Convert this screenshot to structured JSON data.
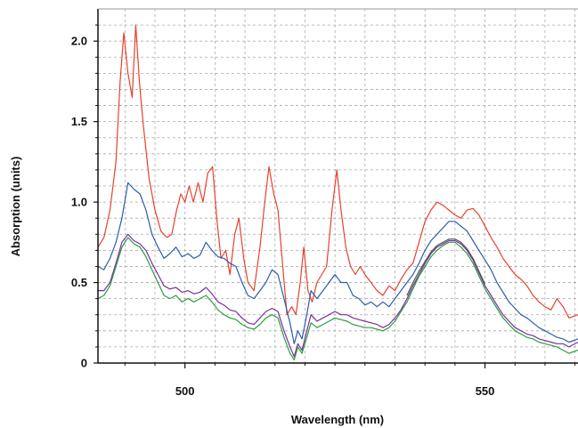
{
  "chart_data": {
    "type": "line",
    "title": "",
    "xlabel": "Wavelength (nm)",
    "ylabel": "Absorption (units)",
    "xlim": [
      485.5,
      565.5
    ],
    "ylim": [
      0,
      2.2
    ],
    "xticks": [
      500,
      550
    ],
    "xtick_labels": [
      "500",
      "550"
    ],
    "yticks": [
      0,
      0.5,
      1.0,
      1.5,
      2.0
    ],
    "ytick_labels": [
      "0",
      "0.5",
      "1.0",
      "1.5",
      "2.0"
    ],
    "grid": true,
    "legend": "none",
    "series": [
      {
        "color": "#e8412c",
        "x": [
          485.5,
          486.5,
          487.5,
          488.5,
          489.2,
          489.8,
          490.5,
          491.2,
          491.8,
          492.4,
          493.0,
          494.0,
          495.0,
          496.0,
          497.0,
          497.8,
          498.6,
          499.3,
          500.0,
          500.7,
          501.4,
          502.2,
          503.0,
          503.8,
          504.6,
          505.3,
          506.0,
          506.8,
          507.5,
          508.3,
          509.0,
          509.8,
          510.5,
          511.5,
          512.5,
          513.3,
          514.0,
          514.8,
          515.5,
          516.3,
          517.0,
          517.8,
          518.5,
          519.2,
          519.8,
          520.5,
          521.2,
          522.0,
          522.8,
          523.6,
          524.5,
          525.3,
          526.0,
          526.8,
          527.6,
          528.4,
          529.2,
          530.0,
          531.0,
          532.0,
          533.0,
          534.0,
          535.0,
          536.0,
          537.0,
          538.0,
          539.0,
          540.0,
          541.0,
          542.0,
          543.0,
          544.0,
          545.0,
          546.0,
          547.0,
          548.0,
          549.0,
          550.0,
          551.0,
          552.0,
          553.0,
          554.0,
          555.0,
          556.0,
          557.0,
          558.0,
          559.0,
          560.0,
          561.0,
          562.0,
          563.0,
          564.0,
          565.5
        ],
        "y": [
          0.72,
          0.78,
          0.95,
          1.25,
          1.75,
          2.05,
          1.8,
          1.65,
          2.1,
          1.75,
          1.5,
          1.15,
          0.95,
          0.82,
          0.78,
          0.8,
          0.95,
          1.05,
          1.0,
          1.1,
          1.0,
          1.12,
          1.0,
          1.18,
          1.22,
          0.9,
          0.65,
          0.7,
          0.55,
          0.8,
          0.9,
          0.65,
          0.5,
          0.45,
          0.72,
          1.0,
          1.22,
          1.05,
          0.95,
          0.6,
          0.3,
          0.35,
          0.3,
          0.5,
          0.72,
          0.45,
          0.38,
          0.5,
          0.55,
          0.6,
          0.95,
          1.2,
          0.95,
          0.72,
          0.6,
          0.55,
          0.6,
          0.55,
          0.5,
          0.45,
          0.42,
          0.48,
          0.45,
          0.52,
          0.58,
          0.62,
          0.75,
          0.88,
          0.95,
          1.0,
          0.98,
          0.95,
          0.92,
          0.9,
          0.95,
          0.96,
          0.92,
          0.85,
          0.78,
          0.72,
          0.65,
          0.6,
          0.55,
          0.52,
          0.48,
          0.42,
          0.38,
          0.35,
          0.33,
          0.4,
          0.35,
          0.28,
          0.3
        ]
      },
      {
        "color": "#2b5dab",
        "x": [
          485.5,
          486.5,
          487.5,
          488.5,
          489.5,
          490.5,
          491.5,
          492.5,
          493.5,
          494.5,
          495.5,
          496.5,
          497.5,
          498.5,
          499.5,
          500.5,
          501.5,
          502.5,
          503.5,
          504.5,
          505.5,
          506.5,
          507.5,
          508.5,
          509.5,
          510.5,
          511.5,
          512.5,
          513.5,
          514.5,
          515.5,
          516.5,
          517.5,
          518.2,
          518.8,
          519.5,
          520.3,
          521.0,
          522.0,
          523.0,
          524.0,
          525.0,
          526.0,
          527.0,
          528.0,
          529.0,
          530.0,
          531.0,
          532.0,
          533.0,
          534.0,
          535.0,
          536.0,
          537.0,
          538.0,
          539.0,
          540.0,
          541.0,
          542.0,
          543.0,
          544.0,
          545.0,
          546.0,
          547.0,
          548.0,
          549.0,
          550.0,
          551.0,
          552.0,
          553.0,
          554.0,
          555.0,
          556.0,
          557.0,
          558.0,
          559.0,
          560.0,
          561.0,
          562.0,
          563.0,
          564.0,
          565.5
        ],
        "y": [
          0.6,
          0.58,
          0.65,
          0.75,
          0.9,
          1.12,
          1.08,
          1.05,
          0.95,
          0.8,
          0.72,
          0.65,
          0.68,
          0.72,
          0.66,
          0.68,
          0.65,
          0.67,
          0.75,
          0.7,
          0.66,
          0.65,
          0.62,
          0.6,
          0.5,
          0.42,
          0.4,
          0.45,
          0.5,
          0.58,
          0.55,
          0.4,
          0.25,
          0.12,
          0.2,
          0.15,
          0.3,
          0.45,
          0.4,
          0.45,
          0.5,
          0.55,
          0.5,
          0.5,
          0.42,
          0.4,
          0.36,
          0.38,
          0.35,
          0.38,
          0.35,
          0.4,
          0.45,
          0.5,
          0.55,
          0.62,
          0.7,
          0.76,
          0.8,
          0.84,
          0.88,
          0.88,
          0.85,
          0.82,
          0.76,
          0.7,
          0.64,
          0.58,
          0.5,
          0.44,
          0.38,
          0.34,
          0.3,
          0.28,
          0.25,
          0.22,
          0.2,
          0.18,
          0.16,
          0.15,
          0.13,
          0.15
        ]
      },
      {
        "color": "#7b2f9e",
        "x": [
          485.5,
          486.5,
          487.5,
          488.5,
          489.5,
          490.5,
          491.5,
          492.5,
          493.5,
          494.5,
          495.5,
          496.5,
          497.5,
          498.5,
          499.5,
          500.5,
          501.5,
          502.5,
          503.5,
          504.5,
          505.5,
          506.5,
          507.5,
          508.5,
          509.5,
          510.5,
          511.5,
          512.5,
          513.5,
          514.5,
          515.5,
          516.5,
          517.5,
          518.2,
          518.8,
          519.5,
          520.3,
          521.0,
          522.0,
          523.0,
          524.0,
          525.0,
          526.0,
          527.0,
          528.0,
          529.0,
          530.0,
          531.0,
          532.0,
          533.0,
          534.0,
          535.0,
          536.0,
          537.0,
          538.0,
          539.0,
          540.0,
          541.0,
          542.0,
          543.0,
          544.0,
          545.0,
          546.0,
          547.0,
          548.0,
          549.0,
          550.0,
          551.0,
          552.0,
          553.0,
          554.0,
          555.0,
          556.0,
          557.0,
          558.0,
          559.0,
          560.0,
          561.0,
          562.0,
          563.0,
          564.0,
          565.5
        ],
        "y": [
          0.45,
          0.45,
          0.5,
          0.62,
          0.75,
          0.8,
          0.76,
          0.74,
          0.7,
          0.62,
          0.55,
          0.48,
          0.46,
          0.47,
          0.44,
          0.45,
          0.43,
          0.44,
          0.47,
          0.43,
          0.38,
          0.36,
          0.33,
          0.32,
          0.28,
          0.25,
          0.24,
          0.28,
          0.32,
          0.34,
          0.32,
          0.2,
          0.1,
          0.04,
          0.12,
          0.08,
          0.2,
          0.3,
          0.26,
          0.28,
          0.3,
          0.32,
          0.3,
          0.3,
          0.28,
          0.27,
          0.26,
          0.25,
          0.24,
          0.22,
          0.24,
          0.28,
          0.33,
          0.4,
          0.48,
          0.55,
          0.62,
          0.68,
          0.72,
          0.74,
          0.76,
          0.76,
          0.74,
          0.7,
          0.64,
          0.56,
          0.48,
          0.42,
          0.36,
          0.3,
          0.26,
          0.22,
          0.2,
          0.18,
          0.17,
          0.15,
          0.14,
          0.13,
          0.12,
          0.12,
          0.1,
          0.13
        ]
      },
      {
        "color": "#2a9d3f",
        "x": [
          485.5,
          486.5,
          487.5,
          488.5,
          489.5,
          490.5,
          491.5,
          492.5,
          493.5,
          494.5,
          495.5,
          496.5,
          497.5,
          498.5,
          499.5,
          500.5,
          501.5,
          502.5,
          503.5,
          504.5,
          505.5,
          506.5,
          507.5,
          508.5,
          509.5,
          510.5,
          511.5,
          512.5,
          513.5,
          514.5,
          515.5,
          516.5,
          517.5,
          518.2,
          518.8,
          519.5,
          520.3,
          521.0,
          522.0,
          523.0,
          524.0,
          525.0,
          526.0,
          527.0,
          528.0,
          529.0,
          530.0,
          531.0,
          532.0,
          533.0,
          534.0,
          535.0,
          536.0,
          537.0,
          538.0,
          539.0,
          540.0,
          541.0,
          542.0,
          543.0,
          544.0,
          545.0,
          546.0,
          547.0,
          548.0,
          549.0,
          550.0,
          551.0,
          552.0,
          553.0,
          554.0,
          555.0,
          556.0,
          557.0,
          558.0,
          559.0,
          560.0,
          561.0,
          562.0,
          563.0,
          564.0,
          565.5
        ],
        "y": [
          0.4,
          0.42,
          0.48,
          0.6,
          0.72,
          0.78,
          0.74,
          0.72,
          0.66,
          0.58,
          0.5,
          0.42,
          0.4,
          0.42,
          0.38,
          0.4,
          0.38,
          0.4,
          0.42,
          0.38,
          0.33,
          0.3,
          0.28,
          0.27,
          0.24,
          0.22,
          0.21,
          0.24,
          0.28,
          0.3,
          0.28,
          0.16,
          0.06,
          0.02,
          0.1,
          0.06,
          0.16,
          0.25,
          0.22,
          0.24,
          0.26,
          0.28,
          0.27,
          0.26,
          0.24,
          0.23,
          0.22,
          0.22,
          0.21,
          0.2,
          0.22,
          0.26,
          0.32,
          0.38,
          0.46,
          0.54,
          0.6,
          0.66,
          0.7,
          0.73,
          0.75,
          0.75,
          0.72,
          0.68,
          0.62,
          0.54,
          0.46,
          0.4,
          0.34,
          0.28,
          0.24,
          0.2,
          0.18,
          0.16,
          0.15,
          0.13,
          0.12,
          0.11,
          0.1,
          0.08,
          0.06,
          0.08
        ]
      },
      {
        "color": "#555555",
        "x": [
          537.0,
          538.0,
          539.0,
          540.0,
          541.0,
          542.0,
          543.0,
          544.0,
          545.0,
          546.0,
          547.0,
          548.0,
          549.0,
          550.0
        ],
        "y": [
          0.42,
          0.5,
          0.57,
          0.63,
          0.69,
          0.73,
          0.75,
          0.77,
          0.77,
          0.75,
          0.71,
          0.65,
          0.57,
          0.49
        ]
      }
    ]
  }
}
